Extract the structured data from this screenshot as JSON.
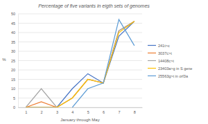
{
  "chart_data": {
    "type": "line",
    "title": "Percentage of five variants in eigth sets of genomes",
    "x_label": "January through May",
    "y_label": "%",
    "categories": [
      "1",
      "2",
      "3",
      "4",
      "5",
      "6",
      "7",
      "8"
    ],
    "series": [
      {
        "name": "241t>c",
        "color": "#4472c4",
        "values": [
          0,
          0,
          0,
          10,
          18,
          13,
          38,
          46
        ]
      },
      {
        "name": "3037c>t",
        "color": "#ed7d31",
        "values": [
          0,
          3,
          0,
          5,
          15,
          13,
          41,
          46
        ]
      },
      {
        "name": "14408c>t",
        "color": "#a5a5a5",
        "values": [
          0,
          10,
          0,
          5,
          15,
          13,
          41,
          46
        ]
      },
      {
        "name": "23403a>g in S gene",
        "color": "#ffc000",
        "values": [
          0,
          0,
          0,
          5,
          15,
          13,
          40,
          46
        ]
      },
      {
        "name": "25563g>t in orf3a",
        "color": "#5b9bd5",
        "values": [
          null,
          null,
          null,
          0,
          10,
          13,
          47,
          33
        ]
      }
    ],
    "ylim": [
      0,
      50
    ],
    "yticks": [
      0,
      5,
      10,
      15,
      20,
      25,
      30,
      35,
      40,
      45,
      50
    ],
    "grid": true,
    "legend": "right"
  }
}
